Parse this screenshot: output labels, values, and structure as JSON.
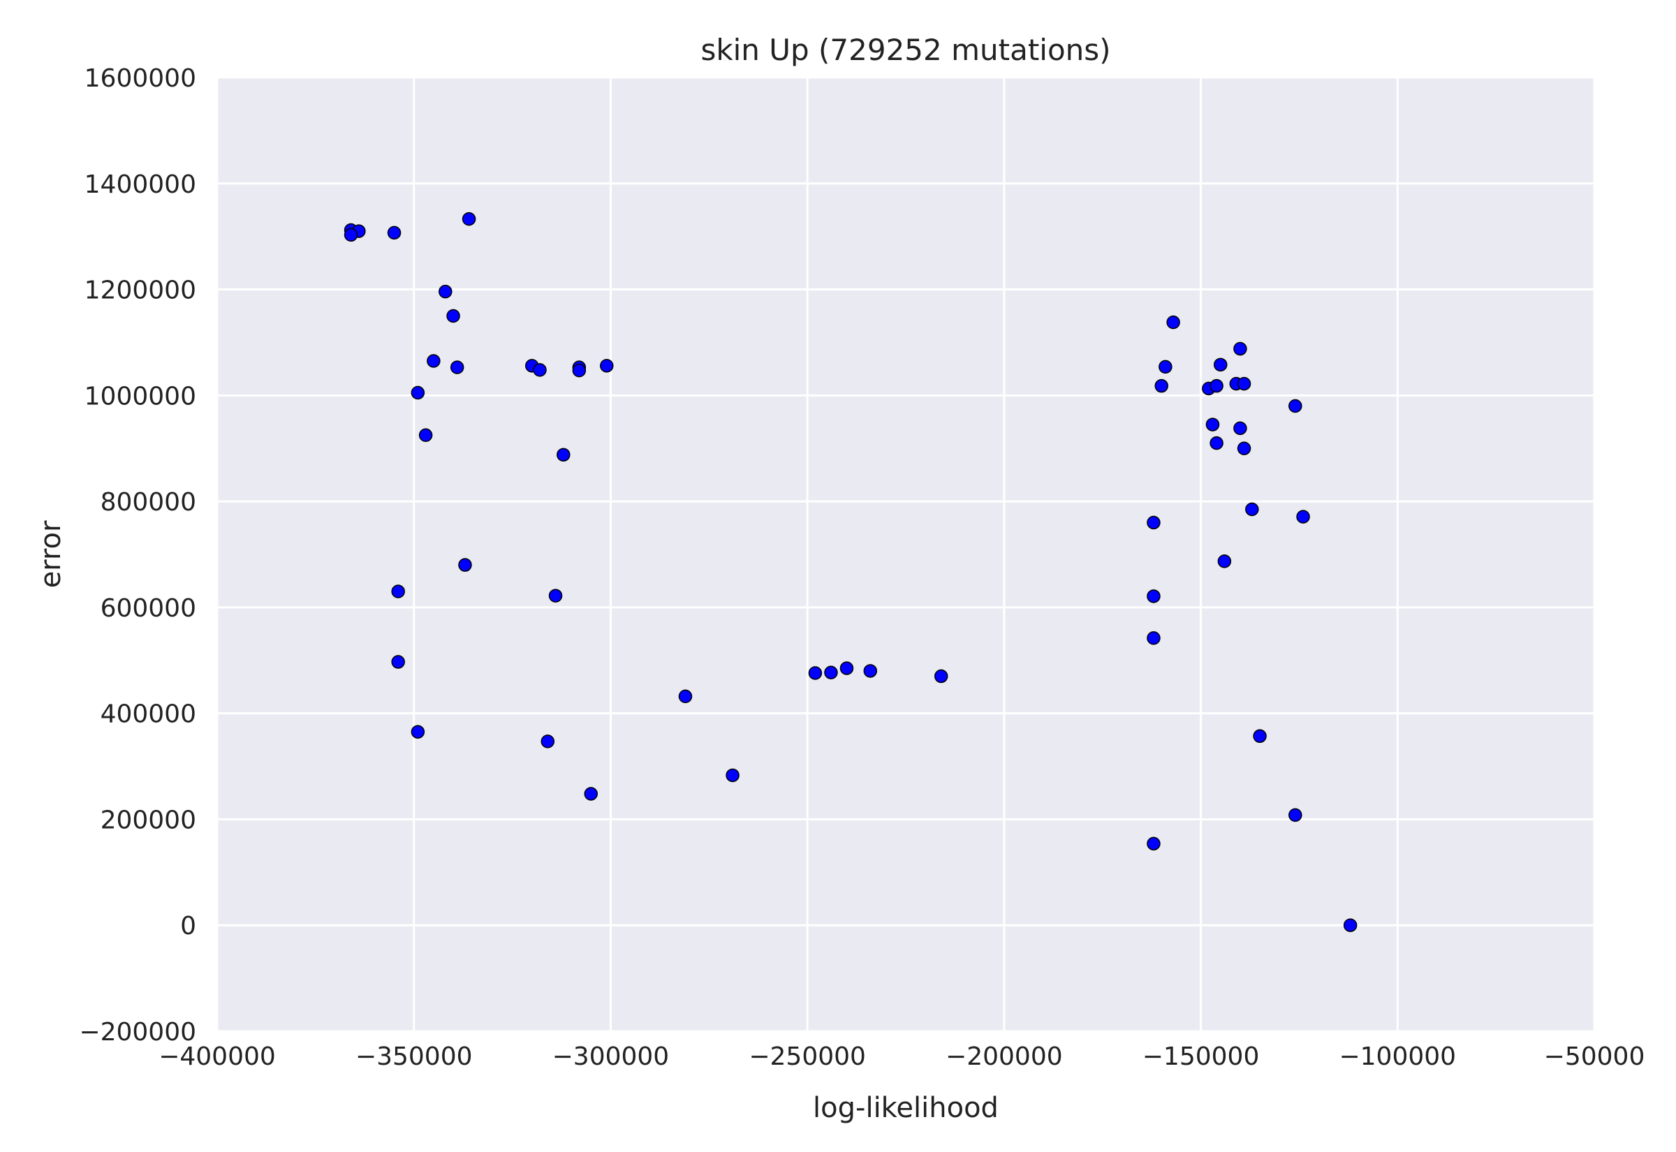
{
  "chart_data": {
    "type": "scatter",
    "title": "skin Up (729252 mutations)",
    "xlabel": "log-likelihood",
    "ylabel": "error",
    "xlim": [
      -400000,
      -50000
    ],
    "ylim": [
      -200000,
      1600000
    ],
    "xticks": [
      -400000,
      -350000,
      -300000,
      -250000,
      -200000,
      -150000,
      -100000,
      -50000
    ],
    "xtick_labels": [
      "−400000",
      "−350000",
      "−300000",
      "−250000",
      "−200000",
      "−150000",
      "−100000",
      "−50000"
    ],
    "yticks": [
      -200000,
      0,
      200000,
      400000,
      600000,
      800000,
      1000000,
      1200000,
      1400000,
      1600000
    ],
    "ytick_labels": [
      "−200000",
      "0",
      "200000",
      "400000",
      "600000",
      "800000",
      "1000000",
      "1200000",
      "1400000",
      "1600000"
    ],
    "grid": true,
    "legend": "none",
    "colors": {
      "point": "#0000ff",
      "background": "#eaeaf2",
      "grid": "#ffffff"
    },
    "series": [
      {
        "x": [
          -366000,
          -364000,
          -366000,
          -355000,
          -336000,
          -342000,
          -340000,
          -345000,
          -339000,
          -349000,
          -347000,
          -320000,
          -318000,
          -308000,
          -308000,
          -301000,
          -312000,
          -337000,
          -354000,
          -314000,
          -354000,
          -349000,
          -316000,
          -305000,
          -281000,
          -269000,
          -248000,
          -244000,
          -240000,
          -234000,
          -216000,
          -157000,
          -159000,
          -160000,
          -145000,
          -140000,
          -148000,
          -146000,
          -141000,
          -139000,
          -126000,
          -147000,
          -140000,
          -146000,
          -139000,
          -137000,
          -162000,
          -124000,
          -144000,
          -162000,
          -162000,
          -135000,
          -126000,
          -162000,
          -112000
        ],
        "y": [
          1312000,
          1310000,
          1303000,
          1307000,
          1333000,
          1196000,
          1150000,
          1065000,
          1053000,
          1005000,
          925000,
          1056000,
          1048000,
          1053000,
          1047000,
          1056000,
          888000,
          680000,
          630000,
          622000,
          497000,
          365000,
          347000,
          248000,
          432000,
          283000,
          476000,
          477000,
          485000,
          480000,
          470000,
          1138000,
          1054000,
          1018000,
          1058000,
          1088000,
          1013000,
          1018000,
          1022000,
          1022000,
          980000,
          945000,
          938000,
          910000,
          900000,
          785000,
          760000,
          771000,
          687000,
          621000,
          542000,
          357000,
          208000,
          154000,
          0
        ]
      }
    ]
  }
}
